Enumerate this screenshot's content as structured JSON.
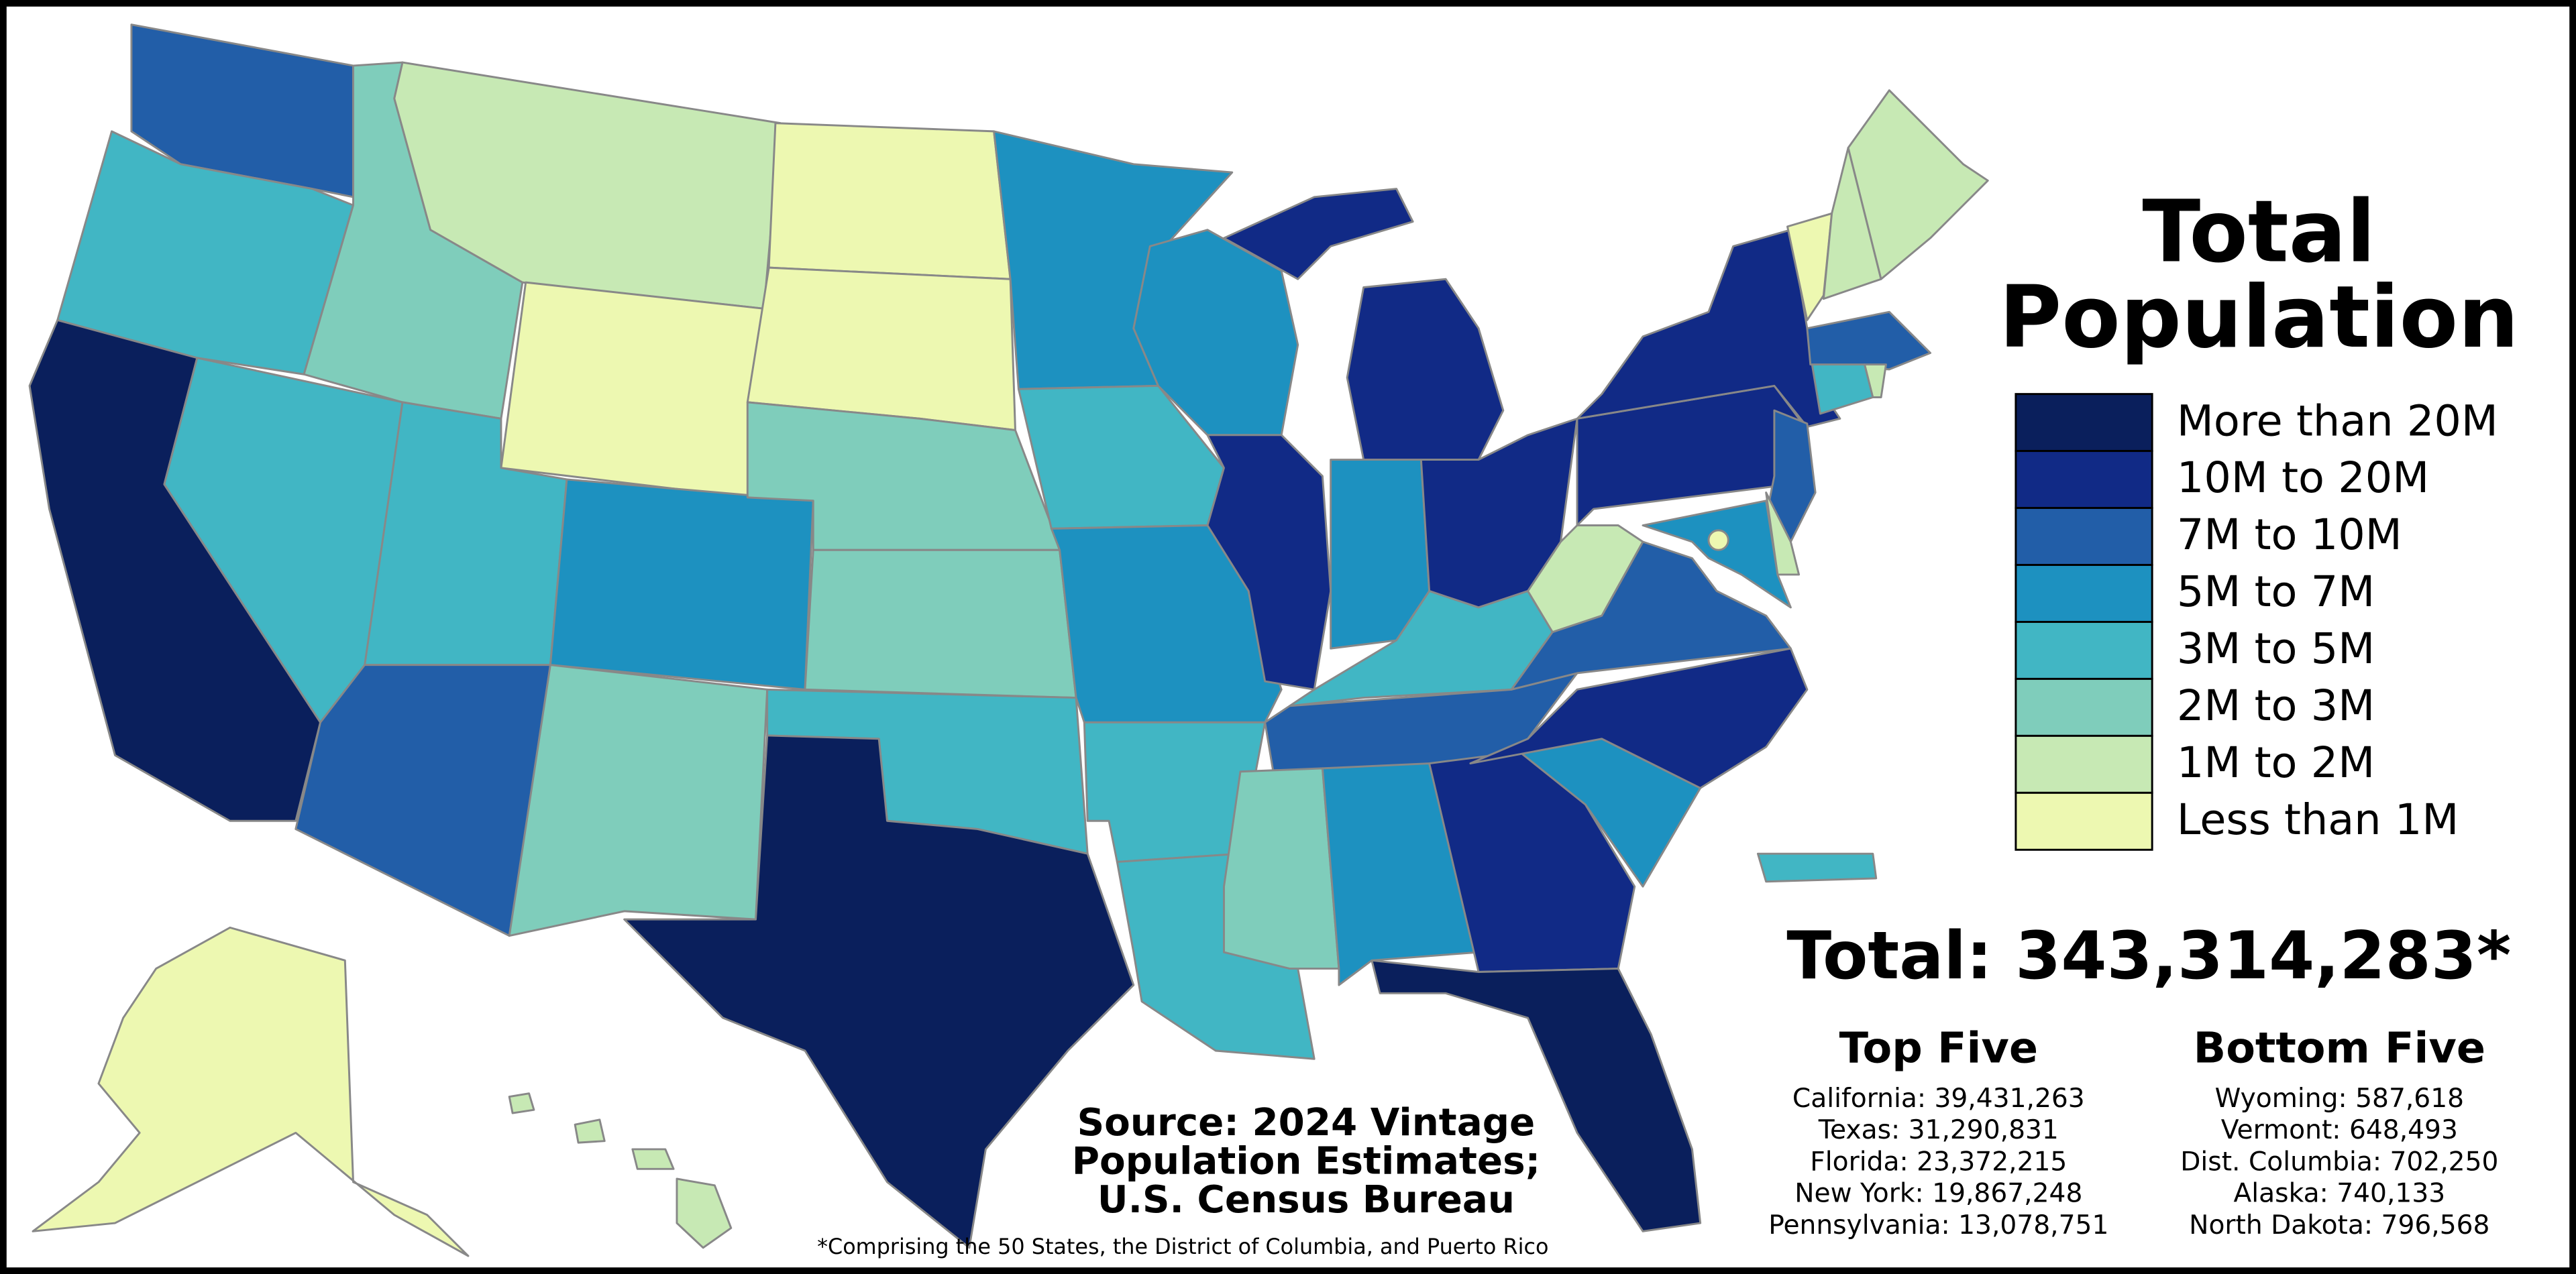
{
  "title_lines": [
    "Total",
    "Population"
  ],
  "legend": {
    "items": [
      {
        "label": "More than 20M",
        "color": "#0a1f5c"
      },
      {
        "label": "10M to 20M",
        "color": "#112a86"
      },
      {
        "label": "7M to 10M",
        "color": "#225ea8"
      },
      {
        "label": "5M to 7M",
        "color": "#1d91c0"
      },
      {
        "label": "3M to 5M",
        "color": "#41b6c4"
      },
      {
        "label": "2M to 3M",
        "color": "#7fcdbb"
      },
      {
        "label": "1M to 2M",
        "color": "#c7e9b4"
      },
      {
        "label": "Less than 1M",
        "color": "#edf8b1"
      }
    ]
  },
  "total": "Total: 343,314,283*",
  "top_five": {
    "heading": "Top Five",
    "items": [
      "California: 39,431,263",
      "Texas: 31,290,831",
      "Florida: 23,372,215",
      "New York: 19,867,248",
      "Pennsylvania: 13,078,751"
    ]
  },
  "bottom_five": {
    "heading": "Bottom Five",
    "items": [
      "Wyoming: 587,618",
      "Vermont: 648,493",
      "Dist. Columbia: 702,250",
      "Alaska: 740,133",
      "North Dakota: 796,568"
    ]
  },
  "source_lines": [
    "Source: 2024 Vintage",
    "Population Estimates;",
    "U.S. Census Bureau"
  ],
  "footnote": "*Comprising the 50 States, the District of Columbia, and Puerto Rico"
}
